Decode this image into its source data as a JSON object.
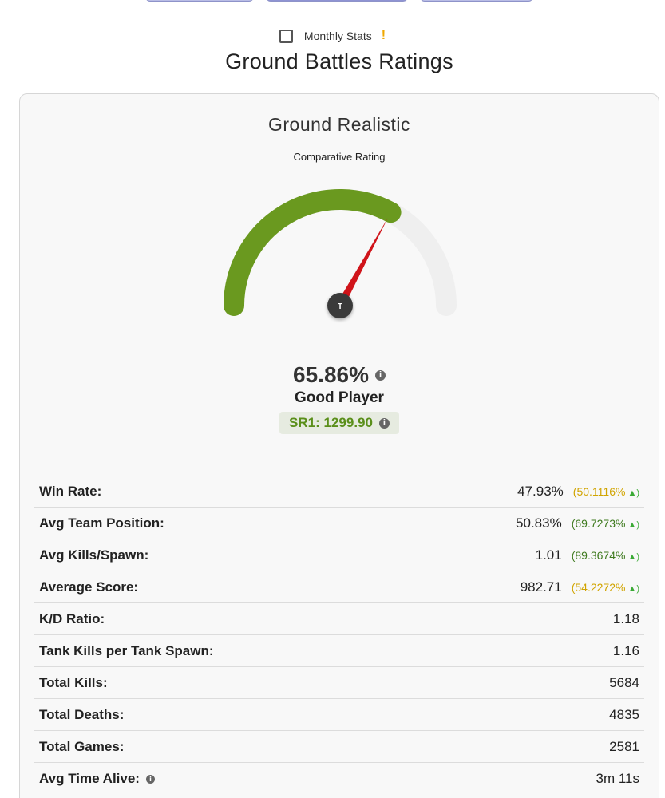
{
  "colors": {
    "gauge_fill": "#6a991f",
    "gauge_track": "#efefef",
    "needle": "#d0141a",
    "hub": "#3a3a3a",
    "pctile_yellow": "#d1a400",
    "pctile_green": "#3e7a1e",
    "arrow_up": "#3aaa35"
  },
  "monthly": {
    "label": "Monthly Stats",
    "warn": "!"
  },
  "page_title": "Ground Battles Ratings",
  "card": {
    "title": "Ground Realistic",
    "subtitle": "Comparative Rating",
    "gauge": {
      "value": 0.6586,
      "hub_label": "T"
    },
    "rating_pct": "65.86%",
    "player_label": "Good Player",
    "sr": "SR1: 1299.90"
  },
  "stats": [
    {
      "key": "Win Rate:",
      "value": "47.93%",
      "pctile": "(50.1116%",
      "arrow": "▲)",
      "color": "yellow"
    },
    {
      "key": "Avg Team Position:",
      "value": "50.83%",
      "pctile": "(69.7273%",
      "arrow": "▲)",
      "color": "green"
    },
    {
      "key": "Avg Kills/Spawn:",
      "value": "1.01",
      "pctile": "(89.3674%",
      "arrow": "▲)",
      "color": "green"
    },
    {
      "key": "Average Score:",
      "value": "982.71",
      "pctile": "(54.2272%",
      "arrow": "▲)",
      "color": "yellow"
    },
    {
      "key": "K/D Ratio:",
      "value": "1.18"
    },
    {
      "key": "Tank Kills per Tank Spawn:",
      "value": "1.16"
    },
    {
      "key": "Total Kills:",
      "value": "5684"
    },
    {
      "key": "Total Deaths:",
      "value": "4835"
    },
    {
      "key": "Total Games:",
      "value": "2581"
    },
    {
      "key": "Avg Time Alive:",
      "value": "3m 11s",
      "info": true
    }
  ]
}
